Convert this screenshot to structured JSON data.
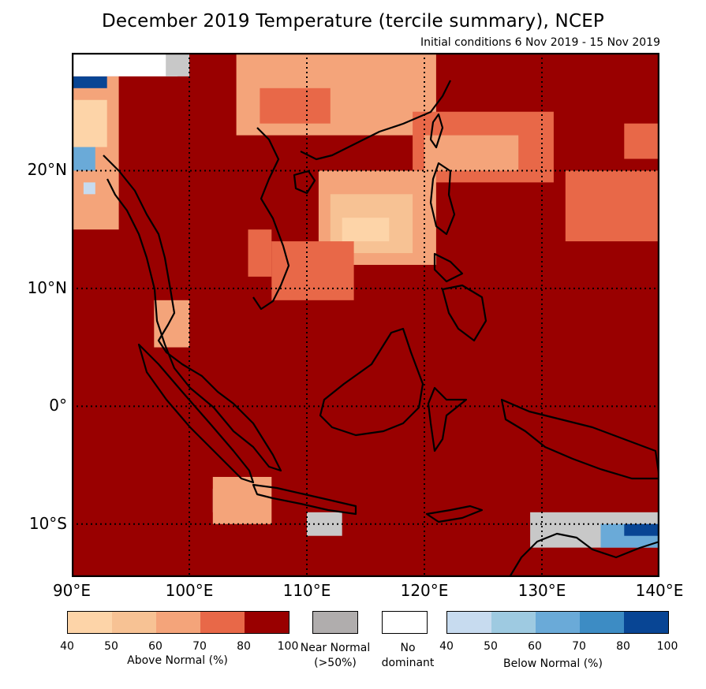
{
  "header": {
    "title": "December 2019 Temperature (tercile summary), NCEP",
    "subtitle": "Initial conditions 6 Nov 2019 - 15 Nov 2019"
  },
  "map": {
    "lon_range": [
      90,
      140
    ],
    "lat_range": [
      -14.5,
      30
    ],
    "base_color": "#990000",
    "lat_labels": [
      {
        "lat": 20,
        "label": "20°N"
      },
      {
        "lat": 10,
        "label": "10°N"
      },
      {
        "lat": 0,
        "label": "0°"
      },
      {
        "lat": -10,
        "label": "10°S"
      }
    ],
    "lon_labels": [
      {
        "lon": 90,
        "label": "90°E"
      },
      {
        "lon": 100,
        "label": "100°E"
      },
      {
        "lon": 110,
        "label": "110°E"
      },
      {
        "lon": 120,
        "label": "120°E"
      },
      {
        "lon": 130,
        "label": "130°E"
      },
      {
        "lon": 140,
        "label": "140°E"
      }
    ],
    "regions": [
      {
        "name": "south-china-coast-above",
        "color": "#f4a47a",
        "lon": [
          104,
          121
        ],
        "lat": [
          23,
          30
        ]
      },
      {
        "name": "south-china-inner-above",
        "color": "#e86848",
        "lon": [
          106,
          112
        ],
        "lat": [
          24,
          27
        ]
      },
      {
        "name": "taiwan-east-above",
        "color": "#e86848",
        "lon": [
          119,
          131
        ],
        "lat": [
          19,
          25
        ]
      },
      {
        "name": "taiwan-east-core",
        "color": "#f4a47a",
        "lon": [
          120,
          128
        ],
        "lat": [
          20,
          23
        ]
      },
      {
        "name": "south-china-sea-above",
        "color": "#f4a47a",
        "lon": [
          111,
          121
        ],
        "lat": [
          12,
          20
        ]
      },
      {
        "name": "south-china-sea-mid",
        "color": "#f7c294",
        "lon": [
          112,
          119
        ],
        "lat": [
          13,
          18
        ]
      },
      {
        "name": "south-china-sea-core",
        "color": "#fdd4a8",
        "lon": [
          113,
          117
        ],
        "lat": [
          14,
          16
        ]
      },
      {
        "name": "south-china-sea-rim",
        "color": "#e86848",
        "lon": [
          107,
          114
        ],
        "lat": [
          9,
          14
        ]
      },
      {
        "name": "pacific-above",
        "color": "#e86848",
        "lon": [
          132,
          140
        ],
        "lat": [
          14,
          20
        ]
      },
      {
        "name": "pacific-north-above",
        "color": "#e86848",
        "lon": [
          137,
          140
        ],
        "lat": [
          21,
          24
        ]
      },
      {
        "name": "myanmar-above",
        "color": "#f4a47a",
        "lon": [
          90,
          94
        ],
        "lat": [
          15,
          28
        ]
      },
      {
        "name": "bangladesh-near",
        "color": "#fdd4a8",
        "lon": [
          90,
          93
        ],
        "lat": [
          22,
          26
        ]
      },
      {
        "name": "bangladesh-below",
        "color": "#6aaad8",
        "lon": [
          90,
          92
        ],
        "lat": [
          20,
          22
        ]
      },
      {
        "name": "bangladesh-below-2",
        "color": "#c7dbef",
        "lon": [
          91,
          92
        ],
        "lat": [
          18,
          19
        ]
      },
      {
        "name": "himalaya-below",
        "color": "#084594",
        "lon": [
          90,
          93
        ],
        "lat": [
          27,
          28
        ]
      },
      {
        "name": "himalaya-nodominant",
        "color": "#ffffff",
        "lon": [
          90,
          99
        ],
        "lat": [
          28,
          30
        ]
      },
      {
        "name": "himalaya-near",
        "color": "#c8c8c8",
        "lon": [
          98,
          100
        ],
        "lat": [
          28,
          30
        ]
      },
      {
        "name": "andaman-above",
        "color": "#f4a47a",
        "lon": [
          97,
          100
        ],
        "lat": [
          5,
          9
        ]
      },
      {
        "name": "java-near",
        "color": "#c8c8c8",
        "lon": [
          102,
          106
        ],
        "lat": [
          -9,
          -7
        ]
      },
      {
        "name": "java-above",
        "color": "#f4a47a",
        "lon": [
          102,
          107
        ],
        "lat": [
          -10,
          -6
        ]
      },
      {
        "name": "bali-near",
        "color": "#c8c8c8",
        "lon": [
          110,
          113
        ],
        "lat": [
          -11,
          -9
        ]
      },
      {
        "name": "northern-australia-near",
        "color": "#c8c8c8",
        "lon": [
          129,
          140
        ],
        "lat": [
          -12,
          -9
        ]
      },
      {
        "name": "northern-australia-below",
        "color": "#6aaad8",
        "lon": [
          135,
          140
        ],
        "lat": [
          -12,
          -10
        ]
      },
      {
        "name": "northern-australia-below-strong",
        "color": "#084594",
        "lon": [
          137,
          140
        ],
        "lat": [
          -11,
          -10
        ]
      },
      {
        "name": "indochina-above",
        "color": "#e86848",
        "lon": [
          105,
          107
        ],
        "lat": [
          11,
          15
        ]
      }
    ]
  },
  "legend": {
    "above": {
      "title": "Above Normal (%)",
      "colors": [
        "#fdd4a8",
        "#f7c294",
        "#f4a47a",
        "#e86848",
        "#990000"
      ],
      "ticks": [
        "40",
        "50",
        "60",
        "70",
        "80",
        "100"
      ]
    },
    "near": {
      "title_line1": "Near Normal",
      "title_line2": "(>50%)",
      "color": "#b0adad"
    },
    "none": {
      "title_line1": "No",
      "title_line2": "dominant",
      "color": "#ffffff"
    },
    "below": {
      "title": "Below Normal (%)",
      "colors": [
        "#c7dbef",
        "#9ecae1",
        "#6aaad8",
        "#3d8cc4",
        "#084594"
      ],
      "ticks": [
        "40",
        "50",
        "60",
        "70",
        "80",
        "100"
      ]
    }
  }
}
